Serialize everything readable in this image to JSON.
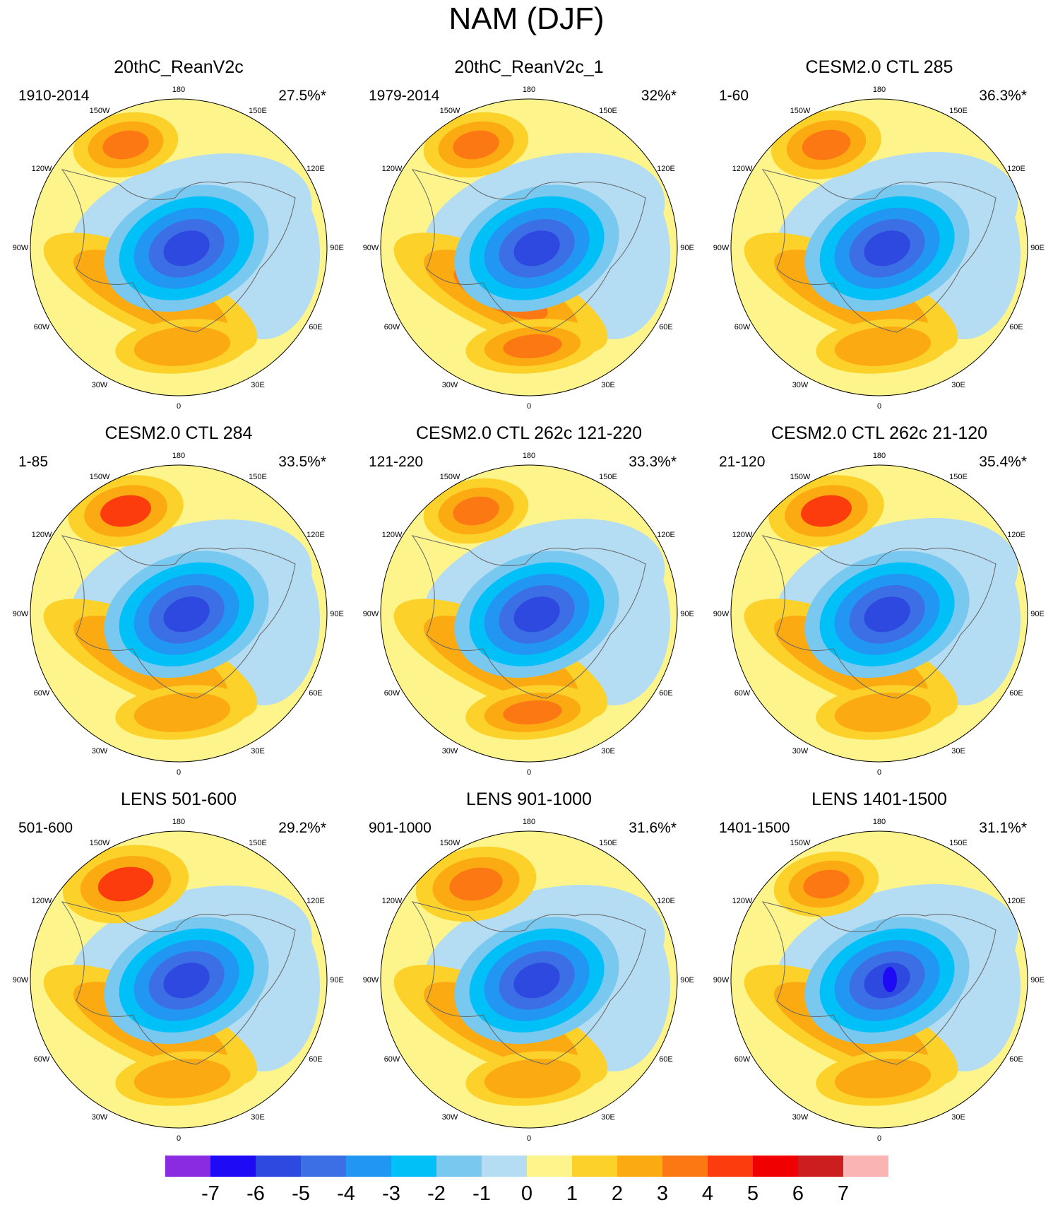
{
  "title": "NAM (DJF)",
  "panels": [
    {
      "title": "20thC_ReanV2c",
      "period": "1910-2014",
      "variance": "27.5%*"
    },
    {
      "title": "20thC_ReanV2c_1",
      "period": "1979-2014",
      "variance": "32%*"
    },
    {
      "title": "CESM2.0 CTL 285",
      "period": "1-60",
      "variance": "36.3%*"
    },
    {
      "title": "CESM2.0 CTL 284",
      "period": "1-85",
      "variance": "33.5%*"
    },
    {
      "title": "CESM2.0 CTL 262c 121-220",
      "period": "121-220",
      "variance": "33.3%*"
    },
    {
      "title": "CESM2.0 CTL 262c 21-120",
      "period": "21-120",
      "variance": "35.4%*"
    },
    {
      "title": "LENS 501-600",
      "period": "501-600",
      "variance": "29.2%*"
    },
    {
      "title": "LENS 901-1000",
      "period": "901-1000",
      "variance": "31.6%*"
    },
    {
      "title": "LENS 1401-1500",
      "period": "1401-1500",
      "variance": "31.1%*"
    }
  ],
  "longitude_labels": [
    "180",
    "150E",
    "120E",
    "90E",
    "60E",
    "30E",
    "0",
    "30W",
    "60W",
    "90W",
    "120W",
    "150W"
  ],
  "colorbar": {
    "tick_labels": [
      "-7",
      "-6",
      "-5",
      "-4",
      "-3",
      "-2",
      "-1",
      "0",
      "1",
      "2",
      "3",
      "4",
      "5",
      "6",
      "7"
    ],
    "colors": [
      "#8a2be2",
      "#1e0af5",
      "#2d49e0",
      "#3c6ee6",
      "#2196f3",
      "#00c0f8",
      "#78c8f0",
      "#b4dcf2",
      "#fdf58c",
      "#fcd22a",
      "#fcaa12",
      "#fc7812",
      "#fc3c0c",
      "#f00000",
      "#cc1e1e",
      "#fab4b4"
    ]
  }
}
